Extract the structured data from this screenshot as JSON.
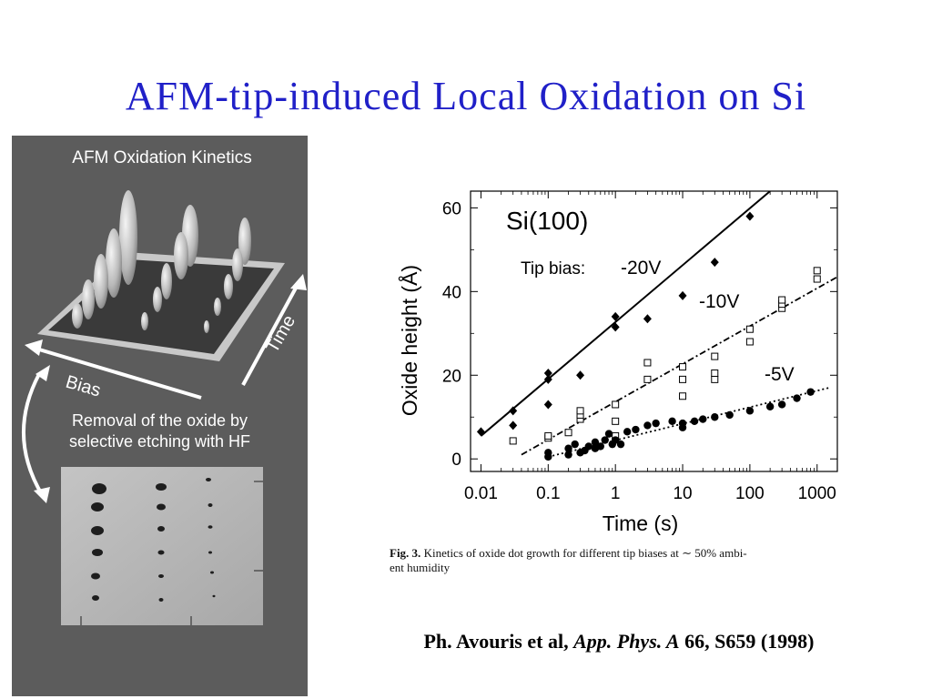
{
  "slide": {
    "title": "AFM-tip-induced Local Oxidation on Si"
  },
  "left_panel": {
    "title": "AFM Oxidation Kinetics",
    "bias_label": "Bias",
    "time_label": "Time",
    "removal_line1": "Removal of the oxide by",
    "removal_line2": "selective etching with HF"
  },
  "chart_data": {
    "type": "scatter",
    "title": "Si(100)",
    "xlabel": "Time (s)",
    "ylabel": "Oxide height (Å)",
    "x_scale": "log",
    "xlim": [
      0.007,
      2000
    ],
    "ylim": [
      -3,
      64
    ],
    "x_ticks": [
      0.01,
      0.1,
      1,
      10,
      100,
      1000
    ],
    "x_tick_labels": [
      "0.01",
      "0.1",
      "1",
      "10",
      "100",
      "1000"
    ],
    "y_ticks": [
      0,
      20,
      40,
      60
    ],
    "y_tick_labels": [
      "0",
      "20",
      "40",
      "60"
    ],
    "legend_label": "Tip bias:",
    "series": [
      {
        "name": "-20V",
        "marker": "filled-diamond",
        "line": "solid",
        "fit": [
          [
            0.01,
            5.5
          ],
          [
            200,
            64
          ]
        ],
        "points": [
          [
            0.01,
            6.5
          ],
          [
            0.03,
            8
          ],
          [
            0.03,
            11.5
          ],
          [
            0.1,
            13
          ],
          [
            0.1,
            19
          ],
          [
            0.1,
            20.5
          ],
          [
            0.3,
            20
          ],
          [
            1,
            31.5
          ],
          [
            1,
            34
          ],
          [
            3,
            33.5
          ],
          [
            10,
            39
          ],
          [
            30,
            47
          ],
          [
            100,
            58
          ]
        ]
      },
      {
        "name": "-10V",
        "marker": "open-square",
        "line": "dashdot",
        "fit": [
          [
            0.04,
            1
          ],
          [
            2000,
            43.5
          ]
        ],
        "points": [
          [
            0.03,
            4.3
          ],
          [
            0.1,
            5
          ],
          [
            0.1,
            5.5
          ],
          [
            0.2,
            6.3
          ],
          [
            0.3,
            9.5
          ],
          [
            0.3,
            10.5
          ],
          [
            0.3,
            11.5
          ],
          [
            1,
            5.5
          ],
          [
            1,
            9
          ],
          [
            1,
            13
          ],
          [
            3,
            19
          ],
          [
            3,
            23
          ],
          [
            10,
            15
          ],
          [
            10,
            19
          ],
          [
            10,
            22
          ],
          [
            30,
            19
          ],
          [
            30,
            20.5
          ],
          [
            30,
            24.5
          ],
          [
            100,
            28
          ],
          [
            100,
            31
          ],
          [
            300,
            36
          ],
          [
            300,
            37
          ],
          [
            300,
            38
          ],
          [
            1000,
            43
          ],
          [
            1000,
            45
          ]
        ]
      },
      {
        "name": "-5V",
        "marker": "filled-circle",
        "line": "dotted",
        "fit": [
          [
            0.1,
            0.5
          ],
          [
            1500,
            17
          ]
        ],
        "points": [
          [
            0.1,
            0.5
          ],
          [
            0.1,
            1.5
          ],
          [
            0.2,
            1
          ],
          [
            0.2,
            2.5
          ],
          [
            0.25,
            3.5
          ],
          [
            0.3,
            1.5
          ],
          [
            0.35,
            2
          ],
          [
            0.4,
            3
          ],
          [
            0.5,
            4
          ],
          [
            0.5,
            2.5
          ],
          [
            0.6,
            3
          ],
          [
            0.7,
            4.5
          ],
          [
            0.8,
            6
          ],
          [
            0.9,
            3.5
          ],
          [
            1,
            4.5
          ],
          [
            1.2,
            3.5
          ],
          [
            1.5,
            6.5
          ],
          [
            2,
            7
          ],
          [
            3,
            8
          ],
          [
            4,
            8.5
          ],
          [
            7,
            9
          ],
          [
            10,
            7.5
          ],
          [
            10,
            8.5
          ],
          [
            15,
            9
          ],
          [
            20,
            9.5
          ],
          [
            30,
            10
          ],
          [
            50,
            10.5
          ],
          [
            100,
            11.5
          ],
          [
            200,
            12.5
          ],
          [
            300,
            13
          ],
          [
            500,
            14.5
          ],
          [
            800,
            16
          ]
        ]
      }
    ]
  },
  "caption": {
    "label": "Fig. 3.",
    "line1": " Kinetics of oxide dot growth for different tip biases at ∼ 50% ambi-",
    "line2": "ent humidity"
  },
  "citation": {
    "authors": "Ph. Avouris et al, ",
    "journal": "App. Phys. A",
    "rest": " 66, S659 (1998)"
  }
}
